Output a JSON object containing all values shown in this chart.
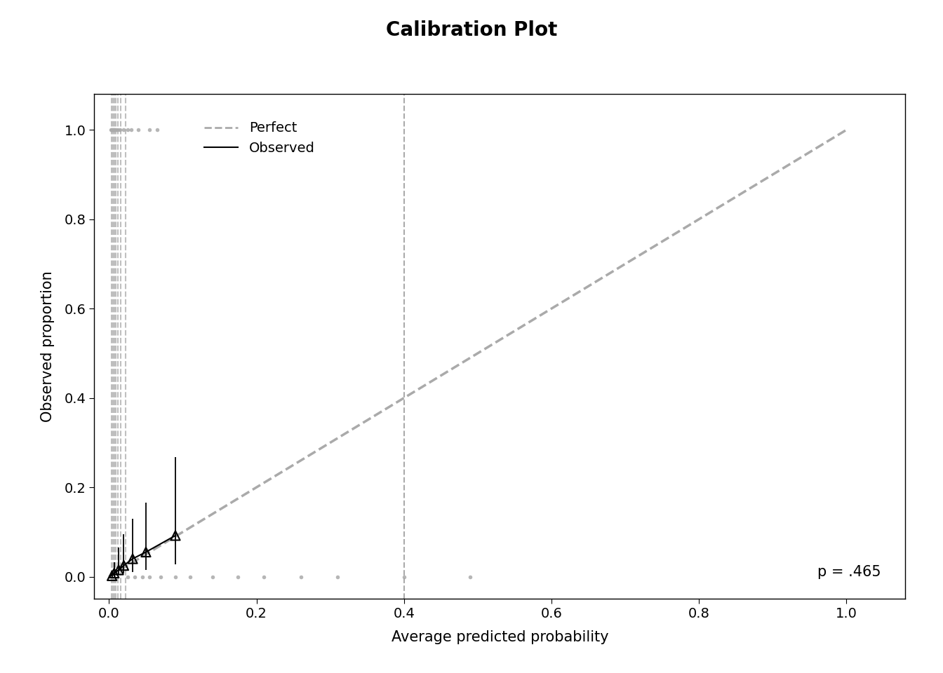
{
  "title": "Calibration Plot",
  "xlabel": "Average predicted probability",
  "ylabel": "Observed proportion",
  "xlim": [
    -0.02,
    1.08
  ],
  "ylim": [
    -0.05,
    1.08
  ],
  "xticks": [
    0.0,
    0.2,
    0.4,
    0.6,
    0.8,
    1.0
  ],
  "yticks": [
    0.0,
    0.2,
    0.4,
    0.6,
    0.8,
    1.0
  ],
  "vline_x": 0.4,
  "p_value_text": "p = .465",
  "background_color": "#ffffff",
  "dashed_color": "#aaaaaa",
  "triangle_color": "#000000",
  "line_color": "#000000",
  "scatter_color": "#aaaaaa",
  "title_fontsize": 20,
  "label_fontsize": 15,
  "tick_fontsize": 14,
  "vert_lines_x": [
    0.003,
    0.005,
    0.007,
    0.009,
    0.012,
    0.016,
    0.022
  ],
  "top_scatter_x": [
    0.002,
    0.003,
    0.004,
    0.005,
    0.006,
    0.007,
    0.008,
    0.01,
    0.012,
    0.015,
    0.02,
    0.025,
    0.03,
    0.04,
    0.055,
    0.065
  ],
  "top_scatter_y": [
    1.0,
    1.0,
    1.0,
    1.0,
    1.0,
    1.0,
    1.0,
    1.0,
    1.0,
    1.0,
    1.0,
    1.0,
    1.0,
    1.0,
    1.0,
    1.0
  ],
  "bottom_scatter_x": [
    0.025,
    0.035,
    0.045,
    0.055,
    0.07,
    0.09,
    0.11,
    0.14,
    0.175,
    0.21,
    0.26,
    0.31,
    0.4,
    0.49
  ],
  "bottom_scatter_y": [
    0.0,
    0.0,
    0.0,
    0.0,
    0.0,
    0.0,
    0.0,
    0.0,
    0.0,
    0.0,
    0.0,
    0.0,
    0.0,
    0.0
  ],
  "tri_x": [
    0.004,
    0.007,
    0.013,
    0.02,
    0.032,
    0.05,
    0.09
  ],
  "tri_y": [
    0.002,
    0.008,
    0.015,
    0.025,
    0.04,
    0.055,
    0.092
  ],
  "tri_yerr_low": [
    0.002,
    0.006,
    0.01,
    0.018,
    0.03,
    0.04,
    0.065
  ],
  "tri_yerr_high": [
    0.01,
    0.025,
    0.05,
    0.07,
    0.09,
    0.11,
    0.175
  ]
}
